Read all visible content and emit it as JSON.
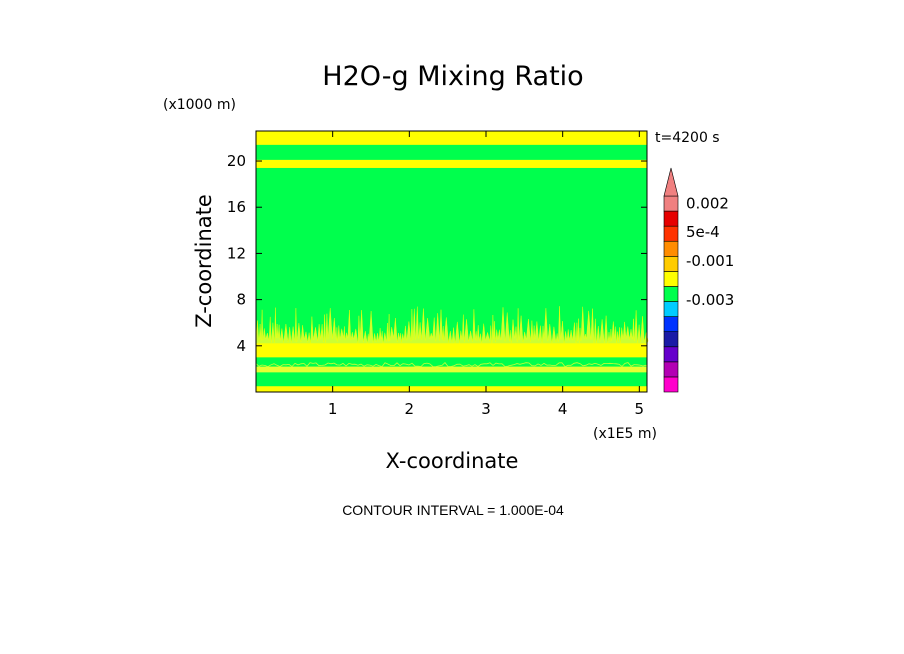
{
  "chart_data": {
    "type": "contour",
    "title": "H2O-g Mixing Ratio",
    "xlabel": "X-coordinate",
    "ylabel": "Z-coordinate",
    "x_units": "(x1E5 m)",
    "y_units": "(x1000 m)",
    "time_label": "t=4200 s",
    "x_range": [
      0,
      5.1
    ],
    "y_range": [
      0,
      22.6
    ],
    "x_ticks": [
      {
        "value": 1,
        "label": "1"
      },
      {
        "value": 2,
        "label": "2"
      },
      {
        "value": 3,
        "label": "3"
      },
      {
        "value": 4,
        "label": "4"
      },
      {
        "value": 5,
        "label": "5"
      }
    ],
    "y_ticks": [
      {
        "value": 4,
        "label": "4"
      },
      {
        "value": 8,
        "label": "8"
      },
      {
        "value": 12,
        "label": "12"
      },
      {
        "value": 16,
        "label": "16"
      },
      {
        "value": 20,
        "label": "20"
      }
    ],
    "field_base_color": "#00ff4d",
    "bands": [
      {
        "z0": 21.4,
        "z1": 22.6,
        "color": "#ffff00"
      },
      {
        "z0": 19.4,
        "z1": 20.1,
        "color": "#ffff00"
      },
      {
        "z0": 3.0,
        "z1": 4.2,
        "color": "#ffff00"
      },
      {
        "z0": 0.0,
        "z1": 0.5,
        "color": "#ffff00"
      },
      {
        "z0": 1.7,
        "z1": 2.2,
        "color": "#e6ff33"
      }
    ],
    "fingers": {
      "z_base": 4.2,
      "z_top_max": 7.5,
      "color": "#ccff33"
    },
    "colorbar": {
      "levels": [
        {
          "color": "#ff00cc"
        },
        {
          "color": "#b300b3"
        },
        {
          "color": "#6600cc"
        },
        {
          "color": "#1a1aa6"
        },
        {
          "color": "#0033ff"
        },
        {
          "color": "#00ccff"
        },
        {
          "color": "#00ff4d"
        },
        {
          "color": "#ffff00"
        },
        {
          "color": "#ffcc00"
        },
        {
          "color": "#ff8c00"
        },
        {
          "color": "#ff3300"
        },
        {
          "color": "#e60000"
        },
        {
          "color": "#f08080"
        }
      ],
      "labels": [
        {
          "level": 12.5,
          "text": "0.002"
        },
        {
          "level": 10.6,
          "text": "5e-4"
        },
        {
          "level": 8.7,
          "text": "-0.001"
        },
        {
          "level": 6.1,
          "text": "-0.003"
        }
      ]
    }
  },
  "footer": {
    "contour_interval": "CONTOUR INTERVAL = 1.000E-04"
  }
}
